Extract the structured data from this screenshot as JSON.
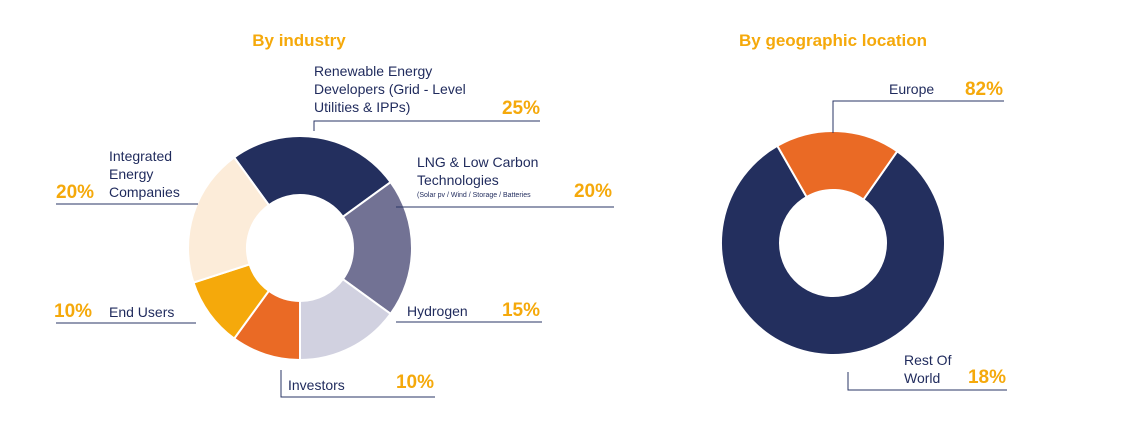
{
  "chart_data": [
    {
      "type": "donut",
      "title": "By industry",
      "colors": [
        "#232f5e",
        "#727294",
        "#d1d1e0",
        "#ea6a25",
        "#f5a90b",
        "#fcecd9"
      ],
      "slices": [
        {
          "label_lines": [
            "Renewable Energy",
            "Developers (Grid - Level",
            "Utilities & IPPs)"
          ],
          "value": 25,
          "value_label": "25%"
        },
        {
          "label_lines": [
            "LNG & Low Carbon",
            "Technologies"
          ],
          "sublabel": "(Solar pv / Wind / Storage / Batteries",
          "value": 20,
          "value_label": "20%"
        },
        {
          "label_lines": [
            "Hydrogen"
          ],
          "value": 15,
          "value_label": "15%"
        },
        {
          "label_lines": [
            "Investors"
          ],
          "value": 10,
          "value_label": "10%"
        },
        {
          "label_lines": [
            "End Users"
          ],
          "value": 10,
          "value_label": "10%"
        },
        {
          "label_lines": [
            "Integrated",
            "Energy",
            "Companies"
          ],
          "value": 20,
          "value_label": "20%"
        }
      ]
    },
    {
      "type": "donut",
      "title": "By geographic location",
      "colors": [
        "#232f5e",
        "#ea6a25"
      ],
      "slices": [
        {
          "label_lines": [
            "Europe"
          ],
          "value": 82,
          "value_label": "82%"
        },
        {
          "label_lines": [
            "Rest Of",
            "World"
          ],
          "value": 18,
          "value_label": "18%"
        }
      ]
    }
  ]
}
